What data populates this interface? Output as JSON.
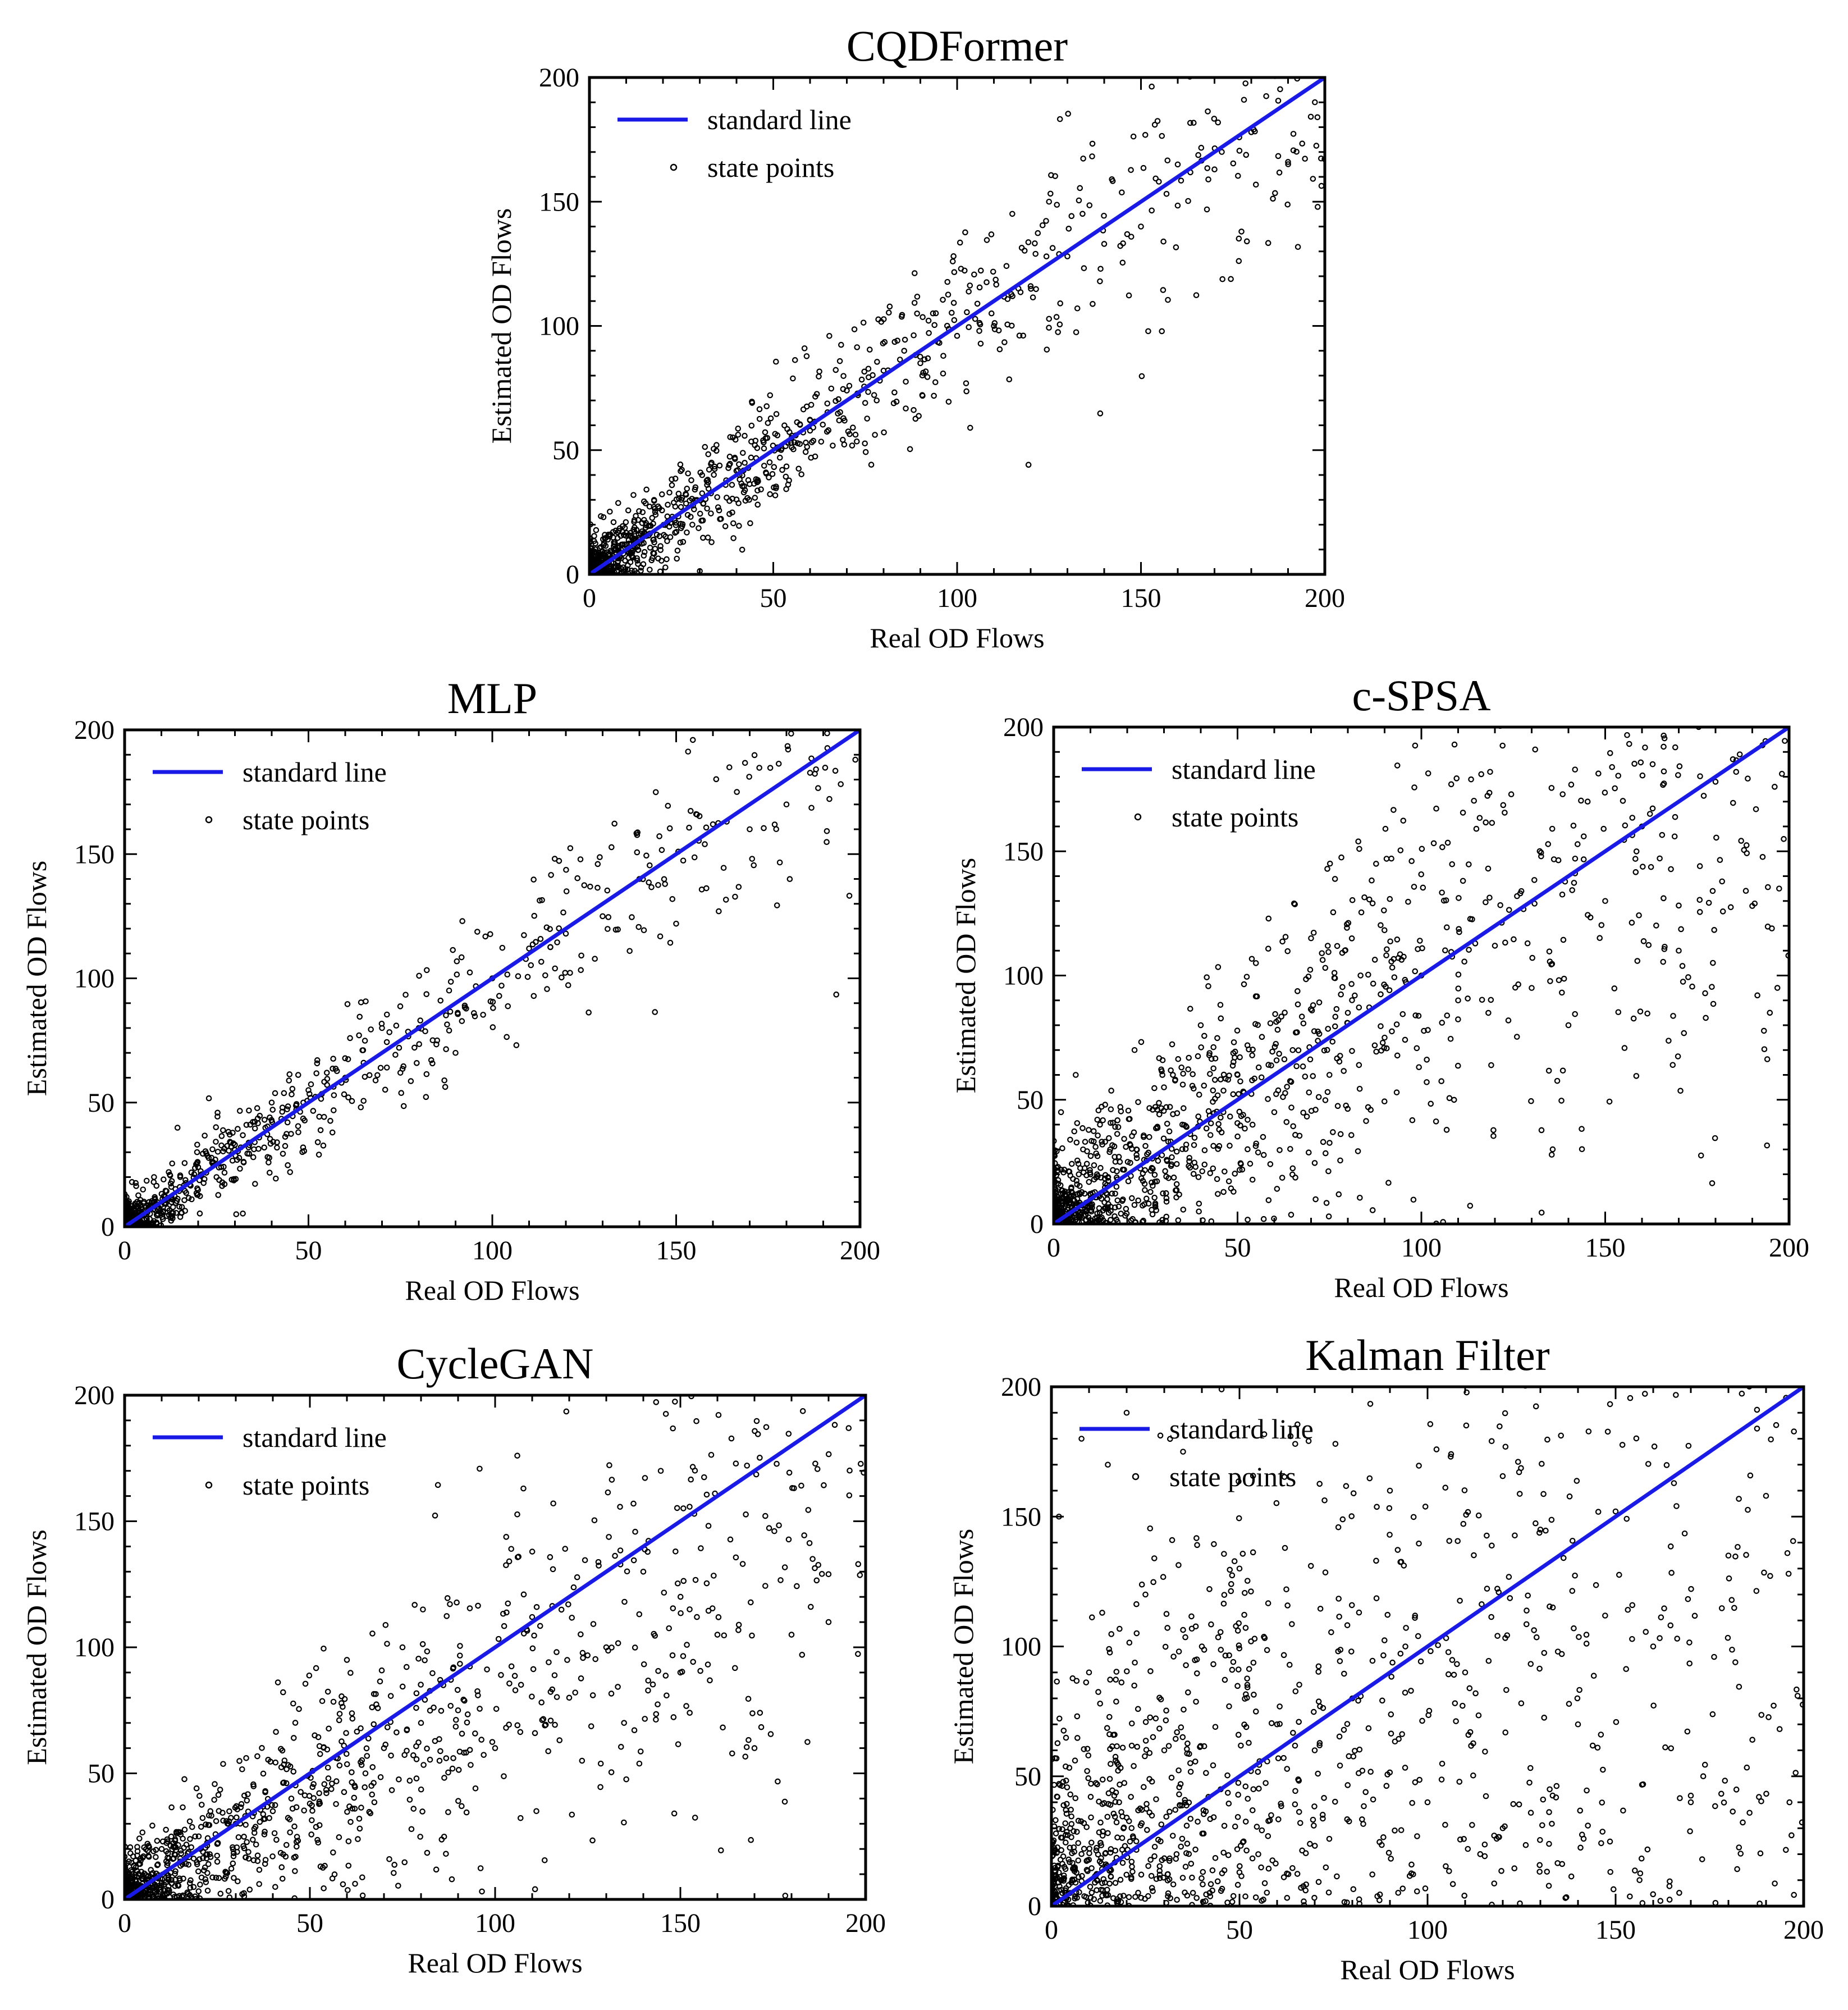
{
  "figure": {
    "background": "#ffffff"
  },
  "style": {
    "line_color": "#1a1ae6",
    "point_color": "#000000"
  },
  "chart_data": [
    {
      "id": "cqdformer",
      "type": "scatter",
      "title": "CQDFormer",
      "xlabel": "Real OD Flows",
      "ylabel": "Estimated OD Flows",
      "xlim": [
        0,
        200
      ],
      "ylim": [
        0,
        200
      ],
      "xticks": [
        0,
        50,
        100,
        150,
        200
      ],
      "yticks": [
        0,
        50,
        100,
        150,
        200
      ],
      "legend": {
        "position": "top-left",
        "entries": [
          "standard line",
          "state points"
        ]
      },
      "series": [
        {
          "name": "standard line",
          "kind": "line",
          "x": [
            0,
            200
          ],
          "y": [
            0,
            200
          ]
        },
        {
          "name": "state points",
          "kind": "scatter",
          "spread": 0.13,
          "noise_floor": 6,
          "n": 1100,
          "skew": 3,
          "x": [
            2,
            5,
            8,
            12,
            15,
            18,
            22,
            25,
            28,
            32,
            35,
            38,
            42,
            45,
            48,
            55,
            60,
            65,
            70,
            75,
            80,
            90,
            100,
            110,
            120,
            125,
            130,
            140,
            150,
            160,
            170,
            180,
            190,
            198
          ],
          "y": [
            6,
            14,
            3,
            18,
            9,
            24,
            15,
            30,
            20,
            36,
            27,
            44,
            33,
            52,
            41,
            55,
            62,
            58,
            74,
            69,
            82,
            85,
            96,
            100,
            116,
            150,
            128,
            133,
            140,
            165,
            163,
            178,
            166,
            184
          ]
        }
      ]
    },
    {
      "id": "mlp",
      "type": "scatter",
      "title": "MLP",
      "xlabel": "Real OD Flows",
      "ylabel": "Estimated OD Flows",
      "xlim": [
        0,
        200
      ],
      "ylim": [
        0,
        200
      ],
      "xticks": [
        0,
        50,
        100,
        150,
        200
      ],
      "yticks": [
        0,
        50,
        100,
        150,
        200
      ],
      "legend": {
        "position": "top-left",
        "entries": [
          "standard line",
          "state points"
        ]
      },
      "series": [
        {
          "name": "standard line",
          "kind": "line",
          "x": [
            0,
            200
          ],
          "y": [
            0,
            200
          ]
        },
        {
          "name": "state points",
          "kind": "scatter",
          "spread": 0.12,
          "noise_floor": 5,
          "n": 950,
          "skew": 4,
          "x": [
            2,
            5,
            8,
            12,
            15,
            20,
            25,
            30,
            35,
            40,
            45,
            50,
            55,
            60,
            65,
            70,
            75,
            80,
            85,
            90,
            95,
            100,
            110,
            120,
            130,
            140,
            150,
            160,
            170,
            180
          ],
          "y": [
            18,
            15,
            20,
            22,
            16,
            24,
            20,
            33,
            28,
            50,
            22,
            55,
            62,
            60,
            66,
            80,
            62,
            80,
            75,
            70,
            86,
            100,
            112,
            118,
            125,
            140,
            122,
            162,
            160,
            170
          ]
        }
      ]
    },
    {
      "id": "cspsa",
      "type": "scatter",
      "title": "c-SPSA",
      "xlabel": "Real OD Flows",
      "ylabel": "Estimated OD Flows",
      "xlim": [
        0,
        200
      ],
      "ylim": [
        0,
        200
      ],
      "xticks": [
        0,
        50,
        100,
        150,
        200
      ],
      "yticks": [
        0,
        50,
        100,
        150,
        200
      ],
      "legend": {
        "position": "top-left",
        "entries": [
          "standard line",
          "state points"
        ]
      },
      "series": [
        {
          "name": "standard line",
          "kind": "line",
          "x": [
            0,
            200
          ],
          "y": [
            0,
            200
          ]
        },
        {
          "name": "state points",
          "kind": "scatter",
          "spread": 0.32,
          "noise_floor": 12,
          "n": 1250,
          "skew": 2.2,
          "x": [
            2,
            4,
            6,
            8,
            10,
            14,
            18,
            22,
            26,
            30,
            35,
            40,
            45,
            50,
            55,
            60,
            65,
            70,
            75,
            80,
            90,
            100,
            110,
            120,
            130,
            140,
            150,
            160,
            170,
            180,
            190
          ],
          "y": [
            45,
            10,
            60,
            30,
            20,
            48,
            25,
            70,
            35,
            55,
            40,
            80,
            38,
            60,
            105,
            45,
            70,
            115,
            60,
            85,
            75,
            100,
            90,
            112,
            95,
            80,
            130,
            160,
            110,
            178,
            128
          ]
        }
      ]
    },
    {
      "id": "cyclegan",
      "type": "scatter",
      "title": "CycleGAN",
      "xlabel": "Real OD Flows",
      "ylabel": "Estimated OD Flows",
      "xlim": [
        0,
        200
      ],
      "ylim": [
        0,
        200
      ],
      "xticks": [
        0,
        50,
        100,
        150,
        200
      ],
      "yticks": [
        0,
        50,
        100,
        150,
        200
      ],
      "legend": {
        "position": "top-left",
        "entries": [
          "standard line",
          "state points"
        ]
      },
      "series": [
        {
          "name": "standard line",
          "kind": "line",
          "x": [
            0,
            200
          ],
          "y": [
            0,
            200
          ]
        },
        {
          "name": "state points",
          "kind": "scatter",
          "spread": 0.3,
          "noise_floor": 8,
          "n": 1150,
          "skew": 2.4,
          "bias": 0.82,
          "x": [
            2,
            5,
            10,
            15,
            20,
            25,
            30,
            35,
            40,
            45,
            50,
            55,
            60,
            65,
            70,
            75,
            80,
            85,
            90,
            100,
            110,
            120,
            130,
            140,
            150,
            160,
            170,
            180,
            190,
            198
          ],
          "y": [
            10,
            8,
            20,
            15,
            25,
            22,
            30,
            28,
            35,
            40,
            38,
            48,
            95,
            50,
            60,
            100,
            70,
            55,
            75,
            60,
            112,
            80,
            100,
            130,
            90,
            105,
            60,
            105,
            110,
            133
          ]
        }
      ]
    },
    {
      "id": "kalman",
      "type": "scatter",
      "title": "Kalman Filter",
      "xlabel": "Real OD Flows",
      "ylabel": "Estimated OD Flows",
      "xlim": [
        0,
        200
      ],
      "ylim": [
        0,
        200
      ],
      "xticks": [
        0,
        50,
        100,
        150,
        200
      ],
      "yticks": [
        0,
        50,
        100,
        150,
        200
      ],
      "legend": {
        "position": "top-left",
        "entries": [
          "standard line",
          "state points"
        ]
      },
      "series": [
        {
          "name": "standard line",
          "kind": "line",
          "x": [
            0,
            200
          ],
          "y": [
            0,
            200
          ]
        },
        {
          "name": "state points",
          "kind": "scatter",
          "spread": 0.9,
          "noise_floor": 30,
          "n": 1300,
          "skew": 1.6,
          "x": [
            2,
            5,
            8,
            10,
            15,
            18,
            20,
            25,
            30,
            35,
            40,
            45,
            50,
            55,
            60,
            70,
            80,
            90,
            100,
            110,
            120,
            130,
            140,
            150,
            160,
            170,
            180,
            190,
            196
          ],
          "y": [
            150,
            30,
            180,
            90,
            170,
            40,
            190,
            120,
            60,
            175,
            100,
            45,
            130,
            20,
            70,
            60,
            80,
            160,
            40,
            90,
            30,
            145,
            70,
            152,
            100,
            40,
            135,
            158,
            128
          ]
        }
      ]
    }
  ]
}
